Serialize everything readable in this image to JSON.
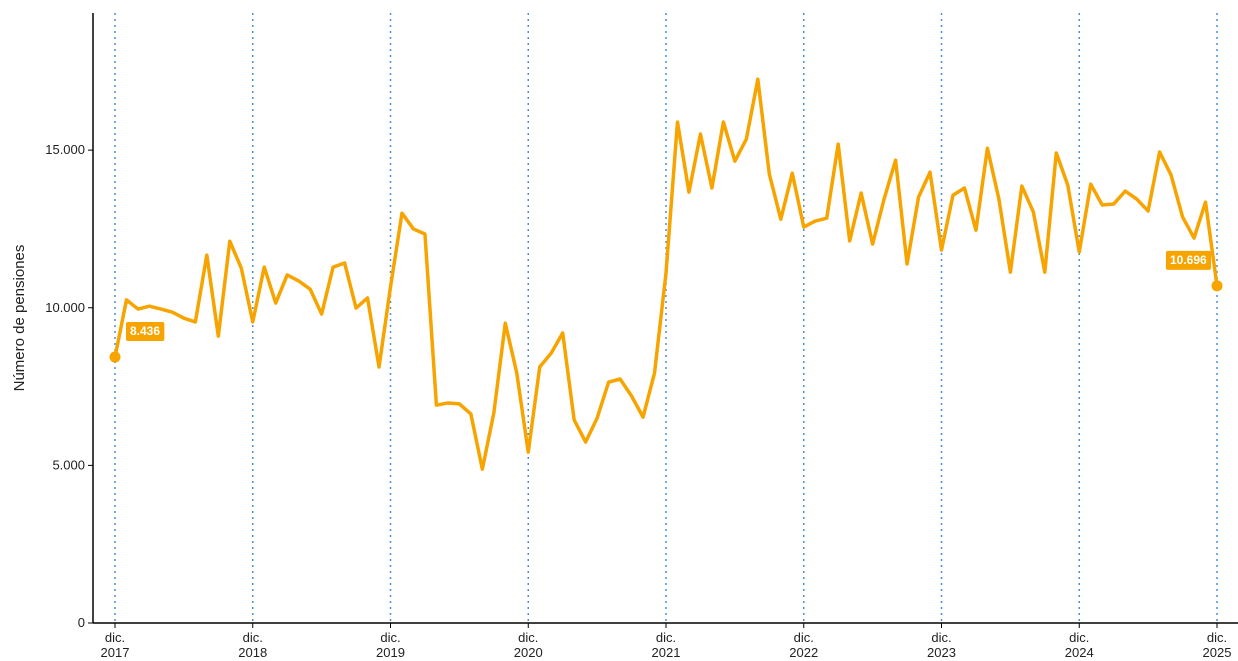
{
  "chart_data": {
    "type": "line",
    "y_label": "Número de pensiones",
    "categories": [
      "dic. 2017",
      null,
      null,
      null,
      null,
      null,
      null,
      null,
      null,
      null,
      null,
      null,
      "dic. 2018",
      null,
      null,
      null,
      null,
      null,
      null,
      null,
      null,
      null,
      null,
      null,
      "dic. 2019",
      null,
      null,
      null,
      null,
      null,
      null,
      null,
      null,
      null,
      null,
      null,
      "dic. 2020",
      null,
      null,
      null,
      null,
      null,
      null,
      null,
      null,
      null,
      null,
      null,
      "dic. 2021",
      null,
      null,
      null,
      null,
      null,
      null,
      null,
      null,
      null,
      null,
      null,
      "dic. 2022",
      null,
      null,
      null,
      null,
      null,
      null,
      null,
      null,
      null,
      null,
      null,
      "dic. 2023",
      null,
      null,
      null,
      null,
      null,
      null,
      null,
      null,
      null,
      null,
      null,
      "dic. 2024",
      null,
      null,
      null,
      null,
      null,
      null,
      null,
      null,
      null,
      null,
      null,
      "dic. 2025"
    ],
    "series": [
      {
        "color": "#f7a400",
        "values": [
          8436,
          10250,
          9960,
          10050,
          9960,
          9860,
          9670,
          9550,
          11670,
          9100,
          12110,
          11260,
          9550,
          11290,
          10150,
          11040,
          10850,
          10590,
          9800,
          11290,
          11420,
          9990,
          10310,
          8120,
          10660,
          13000,
          12500,
          12340,
          6910,
          6980,
          6950,
          6630,
          4880,
          6660,
          9510,
          7930,
          5420,
          8120,
          8560,
          9200,
          6440,
          5740,
          6500,
          7640,
          7740,
          7200,
          6530,
          7930,
          11100,
          15890,
          13670,
          15510,
          13800,
          15890,
          14650,
          15350,
          17250,
          14240,
          12810,
          14270,
          12560,
          12750,
          12840,
          15190,
          12120,
          13640,
          12020,
          13450,
          14680,
          11390,
          13510,
          14300,
          11830,
          13570,
          13800,
          12460,
          15060,
          13450,
          11130,
          13860,
          13040,
          11130,
          14910,
          13890,
          11770,
          13920,
          13260,
          13290,
          13700,
          13450,
          13070,
          14940,
          14210,
          12880,
          12210,
          13350,
          10696
        ],
        "value_labels": [
          "8.436",
          null,
          null,
          null,
          null,
          null,
          null,
          null,
          null,
          null,
          null,
          null,
          null,
          null,
          null,
          null,
          null,
          null,
          null,
          null,
          null,
          null,
          null,
          null,
          null,
          null,
          null,
          null,
          null,
          null,
          null,
          null,
          null,
          null,
          null,
          null,
          null,
          null,
          null,
          null,
          null,
          null,
          null,
          null,
          null,
          null,
          null,
          null,
          null,
          null,
          null,
          null,
          null,
          null,
          null,
          null,
          null,
          null,
          null,
          null,
          null,
          null,
          null,
          null,
          null,
          null,
          null,
          null,
          null,
          null,
          null,
          null,
          null,
          null,
          null,
          null,
          null,
          null,
          null,
          null,
          null,
          null,
          null,
          null,
          null,
          null,
          null,
          null,
          null,
          null,
          null,
          null,
          null,
          null,
          null,
          null,
          "10.696"
        ]
      }
    ],
    "separator_color": "#4a90d9",
    "ylim": [
      0,
      19350
    ],
    "yticks": [
      0,
      {
        "value": 5000,
        "label": "5.000"
      },
      {
        "value": 10000,
        "label": "10.000"
      },
      {
        "value": 15000,
        "label": "15.000"
      }
    ],
    "grid": false
  }
}
